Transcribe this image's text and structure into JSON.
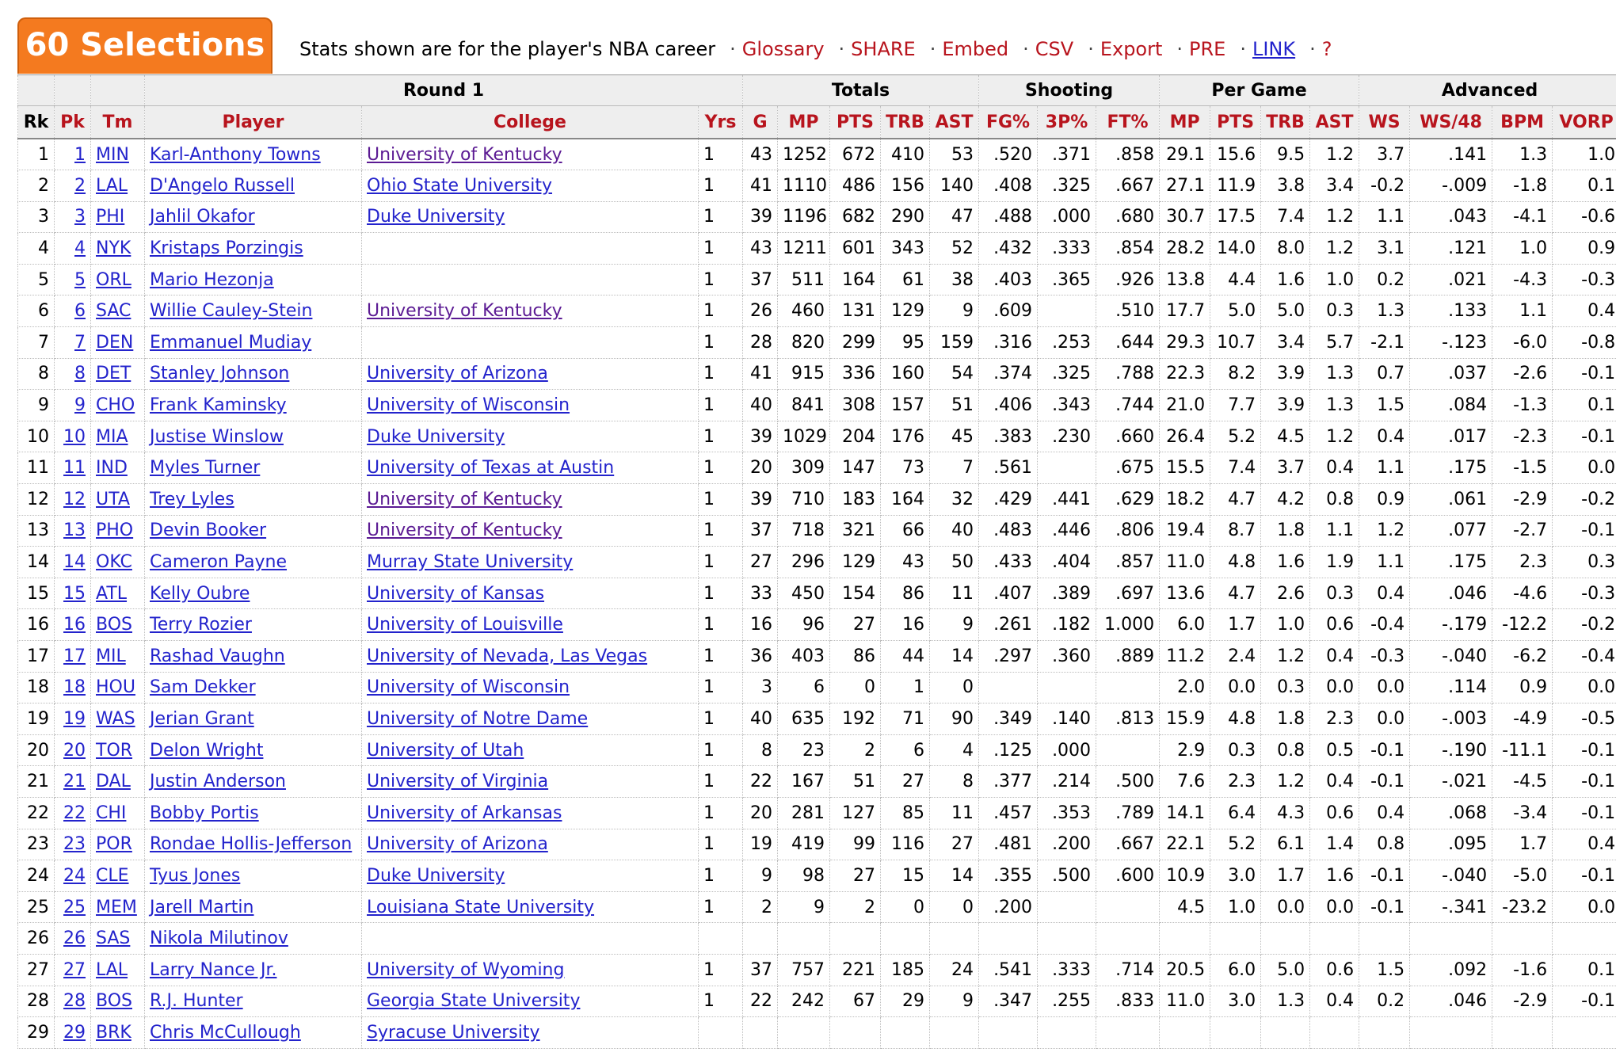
{
  "header": {
    "badge": "60 Selections",
    "description": "Stats shown are for the player's NBA career",
    "links": [
      {
        "label": "Glossary",
        "name": "glossary-link",
        "blue": false
      },
      {
        "label": "SHARE",
        "name": "share-link",
        "blue": false
      },
      {
        "label": "Embed",
        "name": "embed-link",
        "blue": false
      },
      {
        "label": "CSV",
        "name": "csv-link",
        "blue": false
      },
      {
        "label": "Export",
        "name": "export-link",
        "blue": false
      },
      {
        "label": "PRE",
        "name": "pre-link",
        "blue": false
      },
      {
        "label": "LINK",
        "name": "link-link",
        "blue": true
      },
      {
        "label": "?",
        "name": "help-link",
        "blue": false
      }
    ],
    "separator": "·"
  },
  "groups": {
    "round": "Round 1",
    "totals": "Totals",
    "shooting": "Shooting",
    "per_game": "Per Game",
    "advanced": "Advanced"
  },
  "columns": [
    "Rk",
    "Pk",
    "Tm",
    "Player",
    "College",
    "Yrs",
    "G",
    "MP",
    "PTS",
    "TRB",
    "AST",
    "FG%",
    "3P%",
    "FT%",
    "MP",
    "PTS",
    "TRB",
    "AST",
    "WS",
    "WS/48",
    "BPM",
    "VORP"
  ],
  "rows": [
    {
      "rk": "1",
      "pk": "1",
      "tm": "MIN",
      "player": "Karl-Anthony Towns",
      "college": "University of Kentucky",
      "visited": true,
      "yrs": "1",
      "g": "43",
      "mp": "1252",
      "pts": "672",
      "trb": "410",
      "ast": "53",
      "fg": ".520",
      "tp": ".371",
      "ft": ".858",
      "mpg": "29.1",
      "ptsg": "15.6",
      "trbg": "9.5",
      "astg": "1.2",
      "ws": "3.7",
      "ws48": ".141",
      "bpm": "1.3",
      "vorp": "1.0"
    },
    {
      "rk": "2",
      "pk": "2",
      "tm": "LAL",
      "player": "D'Angelo Russell",
      "college": "Ohio State University",
      "visited": false,
      "yrs": "1",
      "g": "41",
      "mp": "1110",
      "pts": "486",
      "trb": "156",
      "ast": "140",
      "fg": ".408",
      "tp": ".325",
      "ft": ".667",
      "mpg": "27.1",
      "ptsg": "11.9",
      "trbg": "3.8",
      "astg": "3.4",
      "ws": "-0.2",
      "ws48": "-.009",
      "bpm": "-1.8",
      "vorp": "0.1"
    },
    {
      "rk": "3",
      "pk": "3",
      "tm": "PHI",
      "player": "Jahlil Okafor",
      "college": "Duke University",
      "visited": false,
      "yrs": "1",
      "g": "39",
      "mp": "1196",
      "pts": "682",
      "trb": "290",
      "ast": "47",
      "fg": ".488",
      "tp": ".000",
      "ft": ".680",
      "mpg": "30.7",
      "ptsg": "17.5",
      "trbg": "7.4",
      "astg": "1.2",
      "ws": "1.1",
      "ws48": ".043",
      "bpm": "-4.1",
      "vorp": "-0.6"
    },
    {
      "rk": "4",
      "pk": "4",
      "tm": "NYK",
      "player": "Kristaps Porzingis",
      "college": "",
      "visited": false,
      "yrs": "1",
      "g": "43",
      "mp": "1211",
      "pts": "601",
      "trb": "343",
      "ast": "52",
      "fg": ".432",
      "tp": ".333",
      "ft": ".854",
      "mpg": "28.2",
      "ptsg": "14.0",
      "trbg": "8.0",
      "astg": "1.2",
      "ws": "3.1",
      "ws48": ".121",
      "bpm": "1.0",
      "vorp": "0.9"
    },
    {
      "rk": "5",
      "pk": "5",
      "tm": "ORL",
      "player": "Mario Hezonja",
      "college": "",
      "visited": false,
      "yrs": "1",
      "g": "37",
      "mp": "511",
      "pts": "164",
      "trb": "61",
      "ast": "38",
      "fg": ".403",
      "tp": ".365",
      "ft": ".926",
      "mpg": "13.8",
      "ptsg": "4.4",
      "trbg": "1.6",
      "astg": "1.0",
      "ws": "0.2",
      "ws48": ".021",
      "bpm": "-4.3",
      "vorp": "-0.3"
    },
    {
      "rk": "6",
      "pk": "6",
      "tm": "SAC",
      "player": "Willie Cauley-Stein",
      "college": "University of Kentucky",
      "visited": true,
      "yrs": "1",
      "g": "26",
      "mp": "460",
      "pts": "131",
      "trb": "129",
      "ast": "9",
      "fg": ".609",
      "tp": "",
      "ft": ".510",
      "mpg": "17.7",
      "ptsg": "5.0",
      "trbg": "5.0",
      "astg": "0.3",
      "ws": "1.3",
      "ws48": ".133",
      "bpm": "1.1",
      "vorp": "0.4"
    },
    {
      "rk": "7",
      "pk": "7",
      "tm": "DEN",
      "player": "Emmanuel Mudiay",
      "college": "",
      "visited": false,
      "yrs": "1",
      "g": "28",
      "mp": "820",
      "pts": "299",
      "trb": "95",
      "ast": "159",
      "fg": ".316",
      "tp": ".253",
      "ft": ".644",
      "mpg": "29.3",
      "ptsg": "10.7",
      "trbg": "3.4",
      "astg": "5.7",
      "ws": "-2.1",
      "ws48": "-.123",
      "bpm": "-6.0",
      "vorp": "-0.8"
    },
    {
      "rk": "8",
      "pk": "8",
      "tm": "DET",
      "player": "Stanley Johnson",
      "college": "University of Arizona",
      "visited": false,
      "yrs": "1",
      "g": "41",
      "mp": "915",
      "pts": "336",
      "trb": "160",
      "ast": "54",
      "fg": ".374",
      "tp": ".325",
      "ft": ".788",
      "mpg": "22.3",
      "ptsg": "8.2",
      "trbg": "3.9",
      "astg": "1.3",
      "ws": "0.7",
      "ws48": ".037",
      "bpm": "-2.6",
      "vorp": "-0.1"
    },
    {
      "rk": "9",
      "pk": "9",
      "tm": "CHO",
      "player": "Frank Kaminsky",
      "college": "University of Wisconsin",
      "visited": false,
      "yrs": "1",
      "g": "40",
      "mp": "841",
      "pts": "308",
      "trb": "157",
      "ast": "51",
      "fg": ".406",
      "tp": ".343",
      "ft": ".744",
      "mpg": "21.0",
      "ptsg": "7.7",
      "trbg": "3.9",
      "astg": "1.3",
      "ws": "1.5",
      "ws48": ".084",
      "bpm": "-1.3",
      "vorp": "0.1"
    },
    {
      "rk": "10",
      "pk": "10",
      "tm": "MIA",
      "player": "Justise Winslow",
      "college": "Duke University",
      "visited": false,
      "yrs": "1",
      "g": "39",
      "mp": "1029",
      "pts": "204",
      "trb": "176",
      "ast": "45",
      "fg": ".383",
      "tp": ".230",
      "ft": ".660",
      "mpg": "26.4",
      "ptsg": "5.2",
      "trbg": "4.5",
      "astg": "1.2",
      "ws": "0.4",
      "ws48": ".017",
      "bpm": "-2.3",
      "vorp": "-0.1"
    },
    {
      "rk": "11",
      "pk": "11",
      "tm": "IND",
      "player": "Myles Turner",
      "college": "University of Texas at Austin",
      "visited": false,
      "yrs": "1",
      "g": "20",
      "mp": "309",
      "pts": "147",
      "trb": "73",
      "ast": "7",
      "fg": ".561",
      "tp": "",
      "ft": ".675",
      "mpg": "15.5",
      "ptsg": "7.4",
      "trbg": "3.7",
      "astg": "0.4",
      "ws": "1.1",
      "ws48": ".175",
      "bpm": "-1.5",
      "vorp": "0.0"
    },
    {
      "rk": "12",
      "pk": "12",
      "tm": "UTA",
      "player": "Trey Lyles",
      "college": "University of Kentucky",
      "visited": true,
      "yrs": "1",
      "g": "39",
      "mp": "710",
      "pts": "183",
      "trb": "164",
      "ast": "32",
      "fg": ".429",
      "tp": ".441",
      "ft": ".629",
      "mpg": "18.2",
      "ptsg": "4.7",
      "trbg": "4.2",
      "astg": "0.8",
      "ws": "0.9",
      "ws48": ".061",
      "bpm": "-2.9",
      "vorp": "-0.2"
    },
    {
      "rk": "13",
      "pk": "13",
      "tm": "PHO",
      "player": "Devin Booker",
      "college": "University of Kentucky",
      "visited": true,
      "yrs": "1",
      "g": "37",
      "mp": "718",
      "pts": "321",
      "trb": "66",
      "ast": "40",
      "fg": ".483",
      "tp": ".446",
      "ft": ".806",
      "mpg": "19.4",
      "ptsg": "8.7",
      "trbg": "1.8",
      "astg": "1.1",
      "ws": "1.2",
      "ws48": ".077",
      "bpm": "-2.7",
      "vorp": "-0.1"
    },
    {
      "rk": "14",
      "pk": "14",
      "tm": "OKC",
      "player": "Cameron Payne",
      "college": "Murray State University",
      "visited": false,
      "yrs": "1",
      "g": "27",
      "mp": "296",
      "pts": "129",
      "trb": "43",
      "ast": "50",
      "fg": ".433",
      "tp": ".404",
      "ft": ".857",
      "mpg": "11.0",
      "ptsg": "4.8",
      "trbg": "1.6",
      "astg": "1.9",
      "ws": "1.1",
      "ws48": ".175",
      "bpm": "2.3",
      "vorp": "0.3"
    },
    {
      "rk": "15",
      "pk": "15",
      "tm": "ATL",
      "player": "Kelly Oubre",
      "college": "University of Kansas",
      "visited": false,
      "yrs": "1",
      "g": "33",
      "mp": "450",
      "pts": "154",
      "trb": "86",
      "ast": "11",
      "fg": ".407",
      "tp": ".389",
      "ft": ".697",
      "mpg": "13.6",
      "ptsg": "4.7",
      "trbg": "2.6",
      "astg": "0.3",
      "ws": "0.4",
      "ws48": ".046",
      "bpm": "-4.6",
      "vorp": "-0.3"
    },
    {
      "rk": "16",
      "pk": "16",
      "tm": "BOS",
      "player": "Terry Rozier",
      "college": "University of Louisville",
      "visited": false,
      "yrs": "1",
      "g": "16",
      "mp": "96",
      "pts": "27",
      "trb": "16",
      "ast": "9",
      "fg": ".261",
      "tp": ".182",
      "ft": "1.000",
      "mpg": "6.0",
      "ptsg": "1.7",
      "trbg": "1.0",
      "astg": "0.6",
      "ws": "-0.4",
      "ws48": "-.179",
      "bpm": "-12.2",
      "vorp": "-0.2"
    },
    {
      "rk": "17",
      "pk": "17",
      "tm": "MIL",
      "player": "Rashad Vaughn",
      "college": "University of Nevada, Las Vegas",
      "visited": false,
      "yrs": "1",
      "g": "36",
      "mp": "403",
      "pts": "86",
      "trb": "44",
      "ast": "14",
      "fg": ".297",
      "tp": ".360",
      "ft": ".889",
      "mpg": "11.2",
      "ptsg": "2.4",
      "trbg": "1.2",
      "astg": "0.4",
      "ws": "-0.3",
      "ws48": "-.040",
      "bpm": "-6.2",
      "vorp": "-0.4"
    },
    {
      "rk": "18",
      "pk": "18",
      "tm": "HOU",
      "player": "Sam Dekker",
      "college": "University of Wisconsin",
      "visited": false,
      "yrs": "1",
      "g": "3",
      "mp": "6",
      "pts": "0",
      "trb": "1",
      "ast": "0",
      "fg": "",
      "tp": "",
      "ft": "",
      "mpg": "2.0",
      "ptsg": "0.0",
      "trbg": "0.3",
      "astg": "0.0",
      "ws": "0.0",
      "ws48": ".114",
      "bpm": "0.9",
      "vorp": "0.0"
    },
    {
      "rk": "19",
      "pk": "19",
      "tm": "WAS",
      "player": "Jerian Grant",
      "college": "University of Notre Dame",
      "visited": false,
      "yrs": "1",
      "g": "40",
      "mp": "635",
      "pts": "192",
      "trb": "71",
      "ast": "90",
      "fg": ".349",
      "tp": ".140",
      "ft": ".813",
      "mpg": "15.9",
      "ptsg": "4.8",
      "trbg": "1.8",
      "astg": "2.3",
      "ws": "0.0",
      "ws48": "-.003",
      "bpm": "-4.9",
      "vorp": "-0.5"
    },
    {
      "rk": "20",
      "pk": "20",
      "tm": "TOR",
      "player": "Delon Wright",
      "college": "University of Utah",
      "visited": false,
      "yrs": "1",
      "g": "8",
      "mp": "23",
      "pts": "2",
      "trb": "6",
      "ast": "4",
      "fg": ".125",
      "tp": ".000",
      "ft": "",
      "mpg": "2.9",
      "ptsg": "0.3",
      "trbg": "0.8",
      "astg": "0.5",
      "ws": "-0.1",
      "ws48": "-.190",
      "bpm": "-11.1",
      "vorp": "-0.1"
    },
    {
      "rk": "21",
      "pk": "21",
      "tm": "DAL",
      "player": "Justin Anderson",
      "college": "University of Virginia",
      "visited": false,
      "yrs": "1",
      "g": "22",
      "mp": "167",
      "pts": "51",
      "trb": "27",
      "ast": "8",
      "fg": ".377",
      "tp": ".214",
      "ft": ".500",
      "mpg": "7.6",
      "ptsg": "2.3",
      "trbg": "1.2",
      "astg": "0.4",
      "ws": "-0.1",
      "ws48": "-.021",
      "bpm": "-4.5",
      "vorp": "-0.1"
    },
    {
      "rk": "22",
      "pk": "22",
      "tm": "CHI",
      "player": "Bobby Portis",
      "college": "University of Arkansas",
      "visited": false,
      "yrs": "1",
      "g": "20",
      "mp": "281",
      "pts": "127",
      "trb": "85",
      "ast": "11",
      "fg": ".457",
      "tp": ".353",
      "ft": ".789",
      "mpg": "14.1",
      "ptsg": "6.4",
      "trbg": "4.3",
      "astg": "0.6",
      "ws": "0.4",
      "ws48": ".068",
      "bpm": "-3.4",
      "vorp": "-0.1"
    },
    {
      "rk": "23",
      "pk": "23",
      "tm": "POR",
      "player": "Rondae Hollis-Jefferson",
      "college": "University of Arizona",
      "visited": false,
      "yrs": "1",
      "g": "19",
      "mp": "419",
      "pts": "99",
      "trb": "116",
      "ast": "27",
      "fg": ".481",
      "tp": ".200",
      "ft": ".667",
      "mpg": "22.1",
      "ptsg": "5.2",
      "trbg": "6.1",
      "astg": "1.4",
      "ws": "0.8",
      "ws48": ".095",
      "bpm": "1.7",
      "vorp": "0.4"
    },
    {
      "rk": "24",
      "pk": "24",
      "tm": "CLE",
      "player": "Tyus Jones",
      "college": "Duke University",
      "visited": false,
      "yrs": "1",
      "g": "9",
      "mp": "98",
      "pts": "27",
      "trb": "15",
      "ast": "14",
      "fg": ".355",
      "tp": ".500",
      "ft": ".600",
      "mpg": "10.9",
      "ptsg": "3.0",
      "trbg": "1.7",
      "astg": "1.6",
      "ws": "-0.1",
      "ws48": "-.040",
      "bpm": "-5.0",
      "vorp": "-0.1"
    },
    {
      "rk": "25",
      "pk": "25",
      "tm": "MEM",
      "player": "Jarell Martin",
      "college": "Louisiana State University",
      "visited": false,
      "yrs": "1",
      "g": "2",
      "mp": "9",
      "pts": "2",
      "trb": "0",
      "ast": "0",
      "fg": ".200",
      "tp": "",
      "ft": "",
      "mpg": "4.5",
      "ptsg": "1.0",
      "trbg": "0.0",
      "astg": "0.0",
      "ws": "-0.1",
      "ws48": "-.341",
      "bpm": "-23.2",
      "vorp": "0.0"
    },
    {
      "rk": "26",
      "pk": "26",
      "tm": "SAS",
      "player": "Nikola Milutinov",
      "college": "",
      "visited": false,
      "yrs": "",
      "g": "",
      "mp": "",
      "pts": "",
      "trb": "",
      "ast": "",
      "fg": "",
      "tp": "",
      "ft": "",
      "mpg": "",
      "ptsg": "",
      "trbg": "",
      "astg": "",
      "ws": "",
      "ws48": "",
      "bpm": "",
      "vorp": ""
    },
    {
      "rk": "27",
      "pk": "27",
      "tm": "LAL",
      "player": "Larry Nance Jr.",
      "college": "University of Wyoming",
      "visited": false,
      "yrs": "1",
      "g": "37",
      "mp": "757",
      "pts": "221",
      "trb": "185",
      "ast": "24",
      "fg": ".541",
      "tp": ".333",
      "ft": ".714",
      "mpg": "20.5",
      "ptsg": "6.0",
      "trbg": "5.0",
      "astg": "0.6",
      "ws": "1.5",
      "ws48": ".092",
      "bpm": "-1.6",
      "vorp": "0.1"
    },
    {
      "rk": "28",
      "pk": "28",
      "tm": "BOS",
      "player": "R.J. Hunter",
      "college": "Georgia State University",
      "visited": false,
      "yrs": "1",
      "g": "22",
      "mp": "242",
      "pts": "67",
      "trb": "29",
      "ast": "9",
      "fg": ".347",
      "tp": ".255",
      "ft": ".833",
      "mpg": "11.0",
      "ptsg": "3.0",
      "trbg": "1.3",
      "astg": "0.4",
      "ws": "0.2",
      "ws48": ".046",
      "bpm": "-2.9",
      "vorp": "-0.1"
    },
    {
      "rk": "29",
      "pk": "29",
      "tm": "BRK",
      "player": "Chris McCullough",
      "college": "Syracuse University",
      "visited": false,
      "yrs": "",
      "g": "",
      "mp": "",
      "pts": "",
      "trb": "",
      "ast": "",
      "fg": "",
      "tp": "",
      "ft": "",
      "mpg": "",
      "ptsg": "",
      "trbg": "",
      "astg": "",
      "ws": "",
      "ws48": "",
      "bpm": "",
      "vorp": ""
    }
  ]
}
